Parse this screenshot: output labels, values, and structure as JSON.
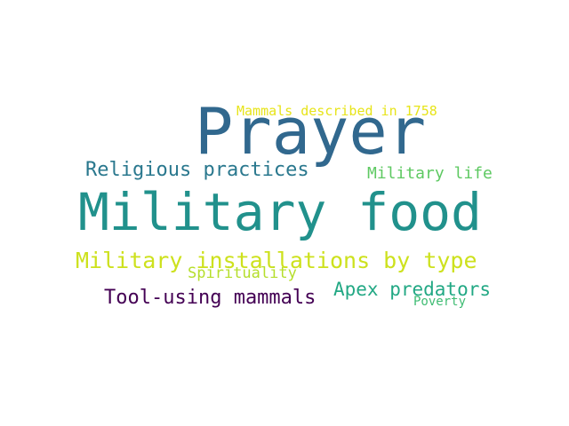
{
  "words": {
    "prayer": {
      "text": "Prayer",
      "color": "#31688e"
    },
    "military_food": {
      "text": "Military food",
      "color": "#21918c"
    },
    "mammals_1758": {
      "text": "Mammals described in 1758",
      "color": "#e7e419"
    },
    "religious_practices": {
      "text": "Religious practices",
      "color": "#2a788e"
    },
    "military_life": {
      "text": "Military life",
      "color": "#5ec962"
    },
    "installations": {
      "text": "Military installations by type",
      "color": "#cde11d"
    },
    "spirituality": {
      "text": "Spirituality",
      "color": "#b5de2b"
    },
    "apex_predators": {
      "text": "Apex predators",
      "color": "#22a884"
    },
    "tool_using": {
      "text": "Tool-using mammals",
      "color": "#440154"
    },
    "poverty": {
      "text": "Poverty",
      "color": "#3fbc73"
    }
  }
}
